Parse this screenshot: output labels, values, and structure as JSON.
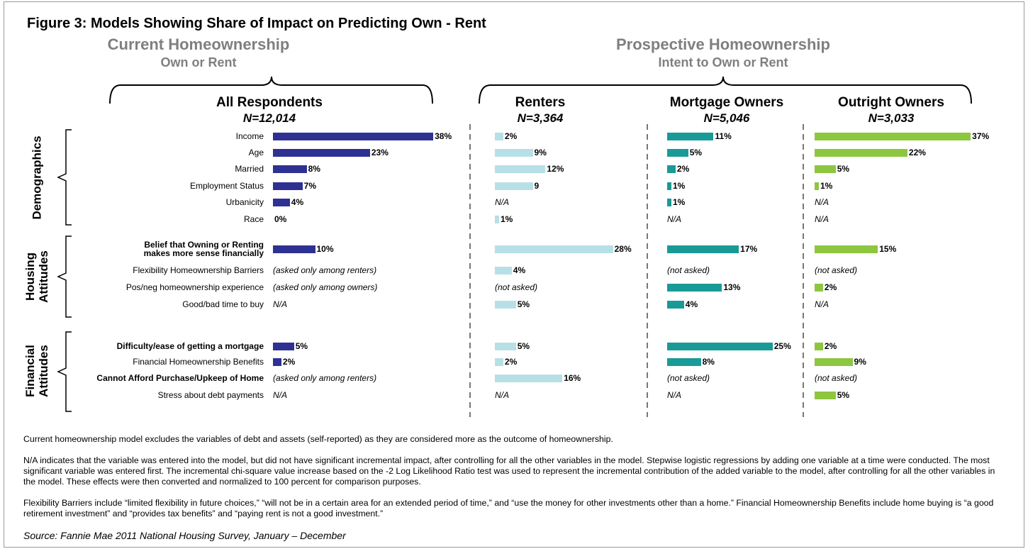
{
  "chart_data": {
    "type": "bar",
    "orientation": "horizontal",
    "title": "Figure 3: Models Showing Share of Impact on Predicting Own - Rent",
    "headers": [
      {
        "title": "Current Homeownership",
        "subtitle": "Own or Rent"
      },
      {
        "title": "Prospective Homeownership",
        "subtitle": "Intent to Own or Rent"
      }
    ],
    "categories": [
      "Income",
      "Age",
      "Married",
      "Employment Status",
      "Urbanicity",
      "Race",
      "Belief that Owning or Renting\nmakes more sense financially",
      "Flexibility Homeownership Barriers",
      "Pos/neg homeownership experience",
      "Good/bad time to buy",
      "Difficulty/ease of getting a mortgage",
      "Financial Homeownership Benefits",
      "Cannot Afford Purchase/Upkeep of Home",
      "Stress about debt payments"
    ],
    "groups": [
      {
        "name": "Demographics",
        "start": 0,
        "end": 5
      },
      {
        "name": "Housing\nAttitudes",
        "start": 6,
        "end": 9
      },
      {
        "name": "Financial\nAttitudes",
        "start": 10,
        "end": 13
      }
    ],
    "series": [
      {
        "name": "All Respondents",
        "n": "N=12,014",
        "color": "#2e3192",
        "values": [
          38,
          23,
          8,
          7,
          4,
          0,
          10,
          null,
          null,
          null,
          5,
          2,
          null,
          null
        ],
        "value_labels": [
          "38%",
          "23%",
          "8%",
          "7%",
          "4%",
          "0%",
          "10%",
          "(asked only among renters)",
          "(asked only among owners)",
          "N/A",
          "5%",
          "2%",
          "(asked only among renters)",
          "N/A"
        ]
      },
      {
        "name": "Renters",
        "n": "N=3,364",
        "color": "#b7e0e6",
        "values": [
          2,
          9,
          12,
          9,
          null,
          1,
          28,
          4,
          null,
          5,
          5,
          2,
          16,
          null
        ],
        "value_labels": [
          "2%",
          "9%",
          "12%",
          "9",
          "N/A",
          "1%",
          "28%",
          "4%",
          "(not asked)",
          "5%",
          "5%",
          "2%",
          "16%",
          "N/A"
        ]
      },
      {
        "name": "Mortgage Owners",
        "n": "N=5,046",
        "color": "#1a9a96",
        "values": [
          11,
          5,
          2,
          1,
          1,
          null,
          17,
          null,
          13,
          4,
          25,
          8,
          null,
          null
        ],
        "value_labels": [
          "11%",
          "5%",
          "2%",
          "1%",
          "1%",
          "N/A",
          "17%",
          "(not asked)",
          "13%",
          "4%",
          "25%",
          "8%",
          "(not asked)",
          "N/A"
        ]
      },
      {
        "name": "Outright Owners",
        "n": "N=3,033",
        "color": "#8dc63f",
        "values": [
          37,
          22,
          5,
          1,
          null,
          null,
          15,
          null,
          2,
          null,
          2,
          9,
          null,
          5
        ],
        "value_labels": [
          "37%",
          "22%",
          "5%",
          "1%",
          "N/A",
          "N/A",
          "15%",
          "(not asked)",
          "2%",
          "N/A",
          "2%",
          "9%",
          "(not asked)",
          "5%"
        ]
      }
    ],
    "notes": [
      "Current homeownership model excludes the variables of debt and assets (self-reported) as they are considered more as the outcome of homeownership.",
      "N/A indicates that the variable was entered into the model, but did not have significant incremental impact, after controlling for all the other variables in the model. Stepwise logistic regressions by adding one variable at a time were conducted.  The most significant variable was entered first. The incremental chi-square value increase based on the -2 Log Likelihood Ratio test was used to represent the incremental contribution of the added variable to the model, after controlling for all the other variables in the model. These effects were then converted and normalized to 100 percent for comparison purposes.",
      "Flexibility Barriers include “limited flexibility in future choices,” “will not be in a certain area for an extended period of time,” and “use the money for other investments other than a home.”  Financial Homeownership Benefits include home buying is “a good retirement investment” and “provides tax benefits” and “paying rent is not a good investment.”"
    ],
    "source": "Source: Fannie Mae 2011 National Housing Survey, January – December"
  }
}
